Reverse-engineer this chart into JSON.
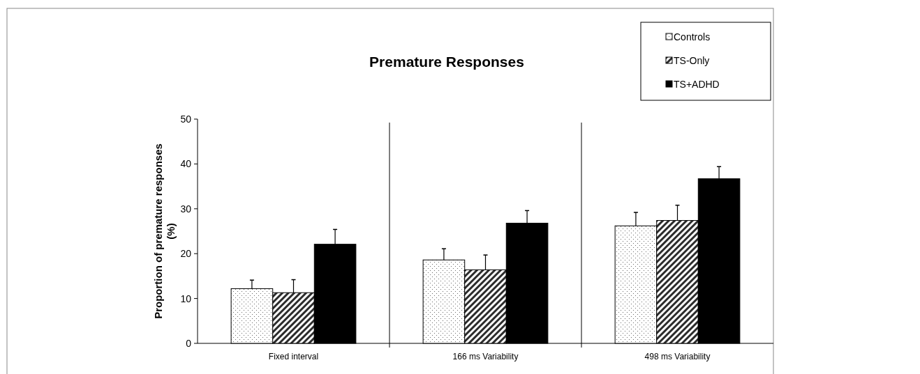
{
  "chart_data": {
    "type": "bar",
    "title": "Premature Responses",
    "ylabel": "Proportion of premature responses (%)",
    "categories": [
      "Fixed interval",
      "166 ms Variability",
      "498 ms Variability"
    ],
    "series": [
      {
        "name": "Controls",
        "color": "#ffffff",
        "values": [
          12.2,
          18.6,
          26.2
        ],
        "errors": [
          [
            12.2,
            14.1
          ],
          [
            18.6,
            21.1
          ],
          [
            26.2,
            29.2
          ]
        ]
      },
      {
        "name": "TS-Only",
        "color": "#808080",
        "values": [
          11.3,
          16.4,
          27.4
        ],
        "errors": [
          [
            11.3,
            14.2
          ],
          [
            16.4,
            19.7
          ],
          [
            27.4,
            30.8
          ]
        ]
      },
      {
        "name": "TS+ADHD",
        "color": "#000000",
        "values": [
          22.1,
          26.8,
          36.7
        ],
        "errors": [
          [
            22.1,
            25.4
          ],
          [
            26.8,
            29.6
          ],
          [
            36.7,
            39.4
          ]
        ]
      }
    ],
    "ylim": [
      0,
      50
    ],
    "yticks": [
      0,
      10,
      20,
      30,
      40,
      50
    ],
    "legend": "top right",
    "grid": false
  }
}
